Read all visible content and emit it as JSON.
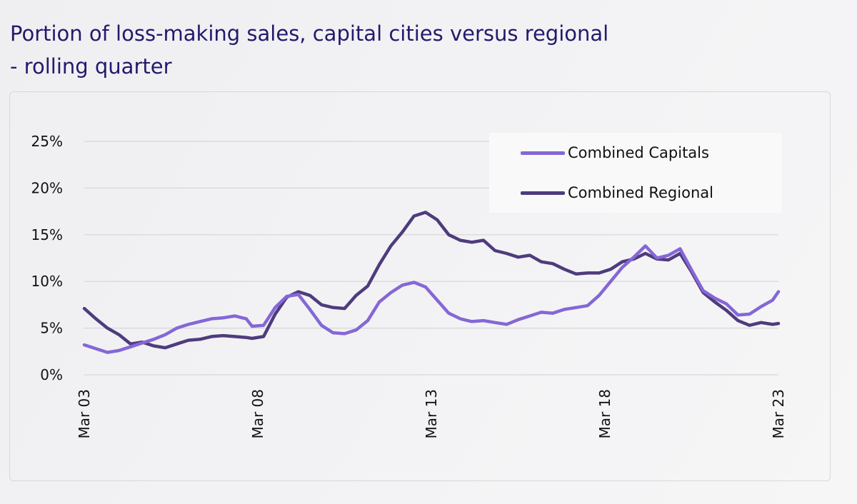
{
  "header": {
    "title_line1": "Portion of loss-making sales, capital cities versus regional",
    "title_line2": "- rolling quarter"
  },
  "colors": {
    "title": "#231a6b",
    "capitals": "#8567d6",
    "regional": "#4e3c7c",
    "gridline": "#d6d6da"
  },
  "chart_data": {
    "type": "line",
    "title": "Portion of loss-making sales, capital cities versus regional - rolling quarter",
    "xlabel": "",
    "ylabel": "",
    "ylim": [
      0,
      25
    ],
    "y_ticks": [
      0,
      5,
      10,
      15,
      20,
      25
    ],
    "y_tick_labels": [
      "0%",
      "5%",
      "10%",
      "15%",
      "20%",
      "25%"
    ],
    "x_range": [
      "2003-03",
      "2023-03"
    ],
    "x_ticks": [
      "2003-03",
      "2008-03",
      "2013-03",
      "2018-03",
      "2023-03"
    ],
    "x_tick_labels": [
      "Mar 03",
      "Mar 08",
      "Mar 13",
      "Mar 18",
      "Mar 23"
    ],
    "grid": true,
    "legend_position": "top-right",
    "series": [
      {
        "name": "Combined Capitals",
        "points": [
          [
            "2003-03",
            3.2
          ],
          [
            "2003-07",
            2.8
          ],
          [
            "2003-11",
            2.4
          ],
          [
            "2004-03",
            2.6
          ],
          [
            "2004-07",
            3.0
          ],
          [
            "2004-11",
            3.4
          ],
          [
            "2005-03",
            3.8
          ],
          [
            "2005-07",
            4.3
          ],
          [
            "2005-11",
            5.0
          ],
          [
            "2006-03",
            5.4
          ],
          [
            "2006-07",
            5.7
          ],
          [
            "2006-11",
            6.0
          ],
          [
            "2007-03",
            6.1
          ],
          [
            "2007-07",
            6.3
          ],
          [
            "2007-11",
            6.0
          ],
          [
            "2008-01",
            5.2
          ],
          [
            "2008-05",
            5.3
          ],
          [
            "2008-09",
            7.2
          ],
          [
            "2009-01",
            8.4
          ],
          [
            "2009-05",
            8.6
          ],
          [
            "2009-09",
            7.0
          ],
          [
            "2010-01",
            5.3
          ],
          [
            "2010-05",
            4.5
          ],
          [
            "2010-09",
            4.4
          ],
          [
            "2011-01",
            4.8
          ],
          [
            "2011-05",
            5.8
          ],
          [
            "2011-09",
            7.8
          ],
          [
            "2012-01",
            8.8
          ],
          [
            "2012-05",
            9.6
          ],
          [
            "2012-09",
            9.9
          ],
          [
            "2013-01",
            9.4
          ],
          [
            "2013-05",
            8.0
          ],
          [
            "2013-09",
            6.6
          ],
          [
            "2014-01",
            6.0
          ],
          [
            "2014-05",
            5.7
          ],
          [
            "2014-09",
            5.8
          ],
          [
            "2015-01",
            5.6
          ],
          [
            "2015-05",
            5.4
          ],
          [
            "2015-09",
            5.9
          ],
          [
            "2016-01",
            6.3
          ],
          [
            "2016-05",
            6.7
          ],
          [
            "2016-09",
            6.6
          ],
          [
            "2017-01",
            7.0
          ],
          [
            "2017-05",
            7.2
          ],
          [
            "2017-09",
            7.4
          ],
          [
            "2018-01",
            8.5
          ],
          [
            "2018-05",
            10.0
          ],
          [
            "2018-09",
            11.5
          ],
          [
            "2019-01",
            12.6
          ],
          [
            "2019-05",
            13.8
          ],
          [
            "2019-09",
            12.5
          ],
          [
            "2020-01",
            12.8
          ],
          [
            "2020-05",
            13.5
          ],
          [
            "2020-09",
            11.2
          ],
          [
            "2021-01",
            9.0
          ],
          [
            "2021-05",
            8.2
          ],
          [
            "2021-09",
            7.6
          ],
          [
            "2022-01",
            6.4
          ],
          [
            "2022-05",
            6.5
          ],
          [
            "2022-09",
            7.3
          ],
          [
            "2023-01",
            8.0
          ],
          [
            "2023-03",
            8.9
          ]
        ]
      },
      {
        "name": "Combined Regional",
        "points": [
          [
            "2003-03",
            7.1
          ],
          [
            "2003-07",
            6.0
          ],
          [
            "2003-11",
            5.0
          ],
          [
            "2004-03",
            4.3
          ],
          [
            "2004-07",
            3.3
          ],
          [
            "2004-11",
            3.5
          ],
          [
            "2005-03",
            3.1
          ],
          [
            "2005-07",
            2.9
          ],
          [
            "2005-11",
            3.3
          ],
          [
            "2006-03",
            3.7
          ],
          [
            "2006-07",
            3.8
          ],
          [
            "2006-11",
            4.1
          ],
          [
            "2007-03",
            4.2
          ],
          [
            "2007-07",
            4.1
          ],
          [
            "2007-11",
            4.0
          ],
          [
            "2008-01",
            3.9
          ],
          [
            "2008-05",
            4.1
          ],
          [
            "2008-09",
            6.5
          ],
          [
            "2009-01",
            8.3
          ],
          [
            "2009-05",
            8.9
          ],
          [
            "2009-09",
            8.5
          ],
          [
            "2010-01",
            7.5
          ],
          [
            "2010-05",
            7.2
          ],
          [
            "2010-09",
            7.1
          ],
          [
            "2011-01",
            8.5
          ],
          [
            "2011-05",
            9.5
          ],
          [
            "2011-09",
            11.8
          ],
          [
            "2012-01",
            13.8
          ],
          [
            "2012-05",
            15.3
          ],
          [
            "2012-09",
            17.0
          ],
          [
            "2013-01",
            17.4
          ],
          [
            "2013-05",
            16.6
          ],
          [
            "2013-09",
            15.0
          ],
          [
            "2014-01",
            14.4
          ],
          [
            "2014-05",
            14.2
          ],
          [
            "2014-09",
            14.4
          ],
          [
            "2015-01",
            13.3
          ],
          [
            "2015-05",
            13.0
          ],
          [
            "2015-09",
            12.6
          ],
          [
            "2016-01",
            12.8
          ],
          [
            "2016-05",
            12.1
          ],
          [
            "2016-09",
            11.9
          ],
          [
            "2017-01",
            11.3
          ],
          [
            "2017-05",
            10.8
          ],
          [
            "2017-09",
            10.9
          ],
          [
            "2018-01",
            10.9
          ],
          [
            "2018-05",
            11.3
          ],
          [
            "2018-09",
            12.1
          ],
          [
            "2019-01",
            12.4
          ],
          [
            "2019-05",
            13.0
          ],
          [
            "2019-09",
            12.4
          ],
          [
            "2020-01",
            12.3
          ],
          [
            "2020-05",
            13.0
          ],
          [
            "2020-09",
            11.0
          ],
          [
            "2021-01",
            8.8
          ],
          [
            "2021-05",
            7.8
          ],
          [
            "2021-09",
            6.9
          ],
          [
            "2022-01",
            5.8
          ],
          [
            "2022-05",
            5.3
          ],
          [
            "2022-09",
            5.6
          ],
          [
            "2023-01",
            5.4
          ],
          [
            "2023-03",
            5.5
          ]
        ]
      }
    ]
  }
}
